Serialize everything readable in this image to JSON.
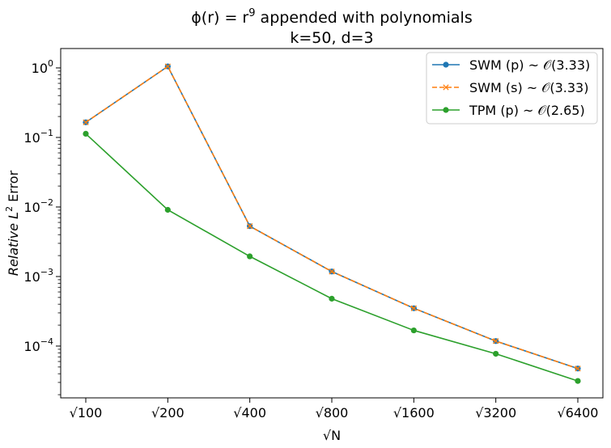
{
  "chart_data": {
    "type": "line",
    "title_line1_prefix": "ϕ(r) = r",
    "title_line1_exp": "9",
    "title_line1_suffix": " appended with polynomials",
    "title_line2": "k=50, d=3",
    "xlabel": "√N",
    "ylabel_prefix": "Relative L",
    "ylabel_exp": "2",
    "ylabel_suffix": " Error",
    "y_scale": "log",
    "ylim": [
      1.8e-05,
      1.9
    ],
    "y_ticks": [
      {
        "value": 1,
        "base": "10",
        "exp": "0"
      },
      {
        "value": 0.1,
        "base": "10",
        "exp": "−1"
      },
      {
        "value": 0.01,
        "base": "10",
        "exp": "−2"
      },
      {
        "value": 0.001,
        "base": "10",
        "exp": "−3"
      },
      {
        "value": 0.0001,
        "base": "10",
        "exp": "−4"
      }
    ],
    "categories": [
      "√100",
      "√200",
      "√400",
      "√800",
      "√1600",
      "√3200",
      "√6400"
    ],
    "grid": false,
    "legend_position": "top-right",
    "series": [
      {
        "name": "SWM (p) ~ 𝒪(3.33)",
        "color": "#1f77b4",
        "marker": "circle",
        "linestyle": "solid",
        "values": [
          0.165,
          1.05,
          0.0053,
          0.00118,
          0.00035,
          0.000118,
          4.75e-05
        ]
      },
      {
        "name": "SWM (s) ~ 𝒪(3.33)",
        "color": "#ff7f0e",
        "marker": "x",
        "linestyle": "dashed",
        "values": [
          0.165,
          1.05,
          0.0053,
          0.00118,
          0.00035,
          0.000118,
          4.75e-05
        ]
      },
      {
        "name": "TPM (p) ~ 𝒪(2.65)",
        "color": "#2ca02c",
        "marker": "circle",
        "linestyle": "solid",
        "values": [
          0.113,
          0.0091,
          0.00195,
          0.00048,
          0.000168,
          7.75e-05,
          3.15e-05
        ]
      }
    ]
  }
}
